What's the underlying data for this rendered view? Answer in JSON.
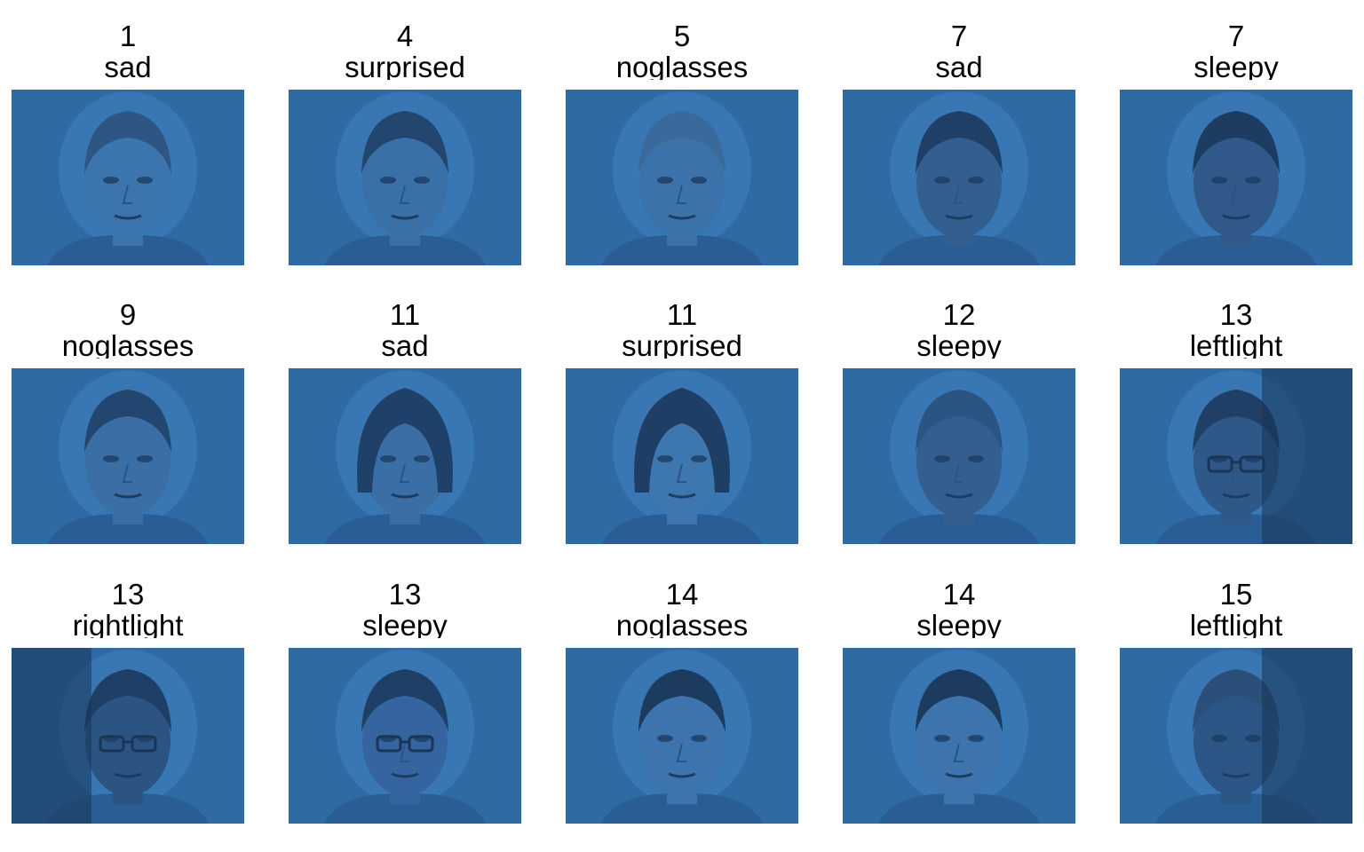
{
  "figure": {
    "tint_color": "#2f6ba6",
    "panels": [
      {
        "subject": "1",
        "condition": "sad"
      },
      {
        "subject": "4",
        "condition": "surprised"
      },
      {
        "subject": "5",
        "condition": "noglasses"
      },
      {
        "subject": "7",
        "condition": "sad"
      },
      {
        "subject": "7",
        "condition": "sleepy"
      },
      {
        "subject": "9",
        "condition": "noglasses"
      },
      {
        "subject": "11",
        "condition": "sad"
      },
      {
        "subject": "11",
        "condition": "surprised"
      },
      {
        "subject": "12",
        "condition": "sleepy"
      },
      {
        "subject": "13",
        "condition": "leftlight"
      },
      {
        "subject": "13",
        "condition": "rightlight"
      },
      {
        "subject": "13",
        "condition": "sleepy"
      },
      {
        "subject": "14",
        "condition": "noglasses"
      },
      {
        "subject": "14",
        "condition": "sleepy"
      },
      {
        "subject": "15",
        "condition": "leftlight"
      }
    ]
  }
}
